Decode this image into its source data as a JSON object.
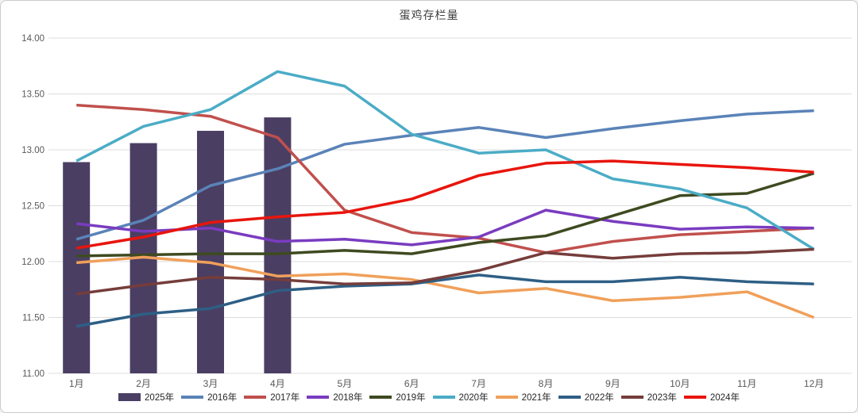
{
  "window": {
    "background": "#ffffff",
    "border_color": "#cbcbcb",
    "gridline_color": "#dcdcdc",
    "tick_label_color": "#595959",
    "title_color": "#404040"
  },
  "chart_data": {
    "type": "bar+line combo",
    "title": "蛋鸡存栏量",
    "xlabel": "",
    "ylabel": "",
    "grid": true,
    "legend_position": "bottom",
    "categories": [
      "1月",
      "2月",
      "3月",
      "4月",
      "5月",
      "6月",
      "7月",
      "8月",
      "9月",
      "10月",
      "11月",
      "12月"
    ],
    "y_axis": {
      "min": 11.0,
      "max": 14.0,
      "step": 0.5,
      "tick_labels": [
        "11.00",
        "11.50",
        "12.00",
        "12.50",
        "13.00",
        "13.50",
        "14.00"
      ]
    },
    "bar_series": {
      "name": "2025年",
      "color": "#4b3e63",
      "values": [
        12.89,
        13.06,
        13.17,
        13.29
      ]
    },
    "line_series": [
      {
        "name": "2016年",
        "color": "#5a83b8",
        "values": [
          12.2,
          12.37,
          12.68,
          12.83,
          13.05,
          13.13,
          13.2,
          13.11,
          13.19,
          13.26,
          13.32,
          13.35
        ]
      },
      {
        "name": "2017年",
        "color": "#c0504d",
        "values": [
          13.4,
          13.36,
          13.3,
          13.11,
          12.46,
          12.26,
          12.21,
          12.08,
          12.18,
          12.24,
          12.27,
          12.3
        ]
      },
      {
        "name": "2018年",
        "color": "#7a3cc0",
        "values": [
          12.34,
          12.27,
          12.3,
          12.18,
          12.2,
          12.15,
          12.22,
          12.46,
          12.36,
          12.29,
          12.31,
          12.3
        ]
      },
      {
        "name": "2019年",
        "color": "#3e4a20",
        "values": [
          12.05,
          12.06,
          12.07,
          12.07,
          12.1,
          12.07,
          12.17,
          12.23,
          12.41,
          12.59,
          12.61,
          12.79
        ]
      },
      {
        "name": "2020年",
        "color": "#4bacc6",
        "values": [
          12.9,
          13.21,
          13.36,
          13.7,
          13.57,
          13.14,
          12.97,
          13.0,
          12.74,
          12.65,
          12.48,
          12.11
        ]
      },
      {
        "name": "2021年",
        "color": "#f0a05a",
        "values": [
          11.99,
          12.04,
          11.99,
          11.87,
          11.89,
          11.84,
          11.72,
          11.76,
          11.65,
          11.68,
          11.73,
          11.5
        ]
      },
      {
        "name": "2022年",
        "color": "#2e5f85",
        "values": [
          11.42,
          11.53,
          11.58,
          11.74,
          11.78,
          11.8,
          11.88,
          11.82,
          11.82,
          11.86,
          11.82,
          11.8
        ]
      },
      {
        "name": "2023年",
        "color": "#753d3b",
        "values": [
          11.71,
          11.79,
          11.86,
          11.84,
          11.8,
          11.81,
          11.92,
          12.08,
          12.03,
          12.07,
          12.08,
          12.11
        ]
      },
      {
        "name": "2024年",
        "color": "#e8150d",
        "values": [
          12.12,
          12.22,
          12.35,
          12.4,
          12.44,
          12.56,
          12.77,
          12.88,
          12.9,
          12.87,
          12.84,
          12.8
        ]
      }
    ]
  }
}
